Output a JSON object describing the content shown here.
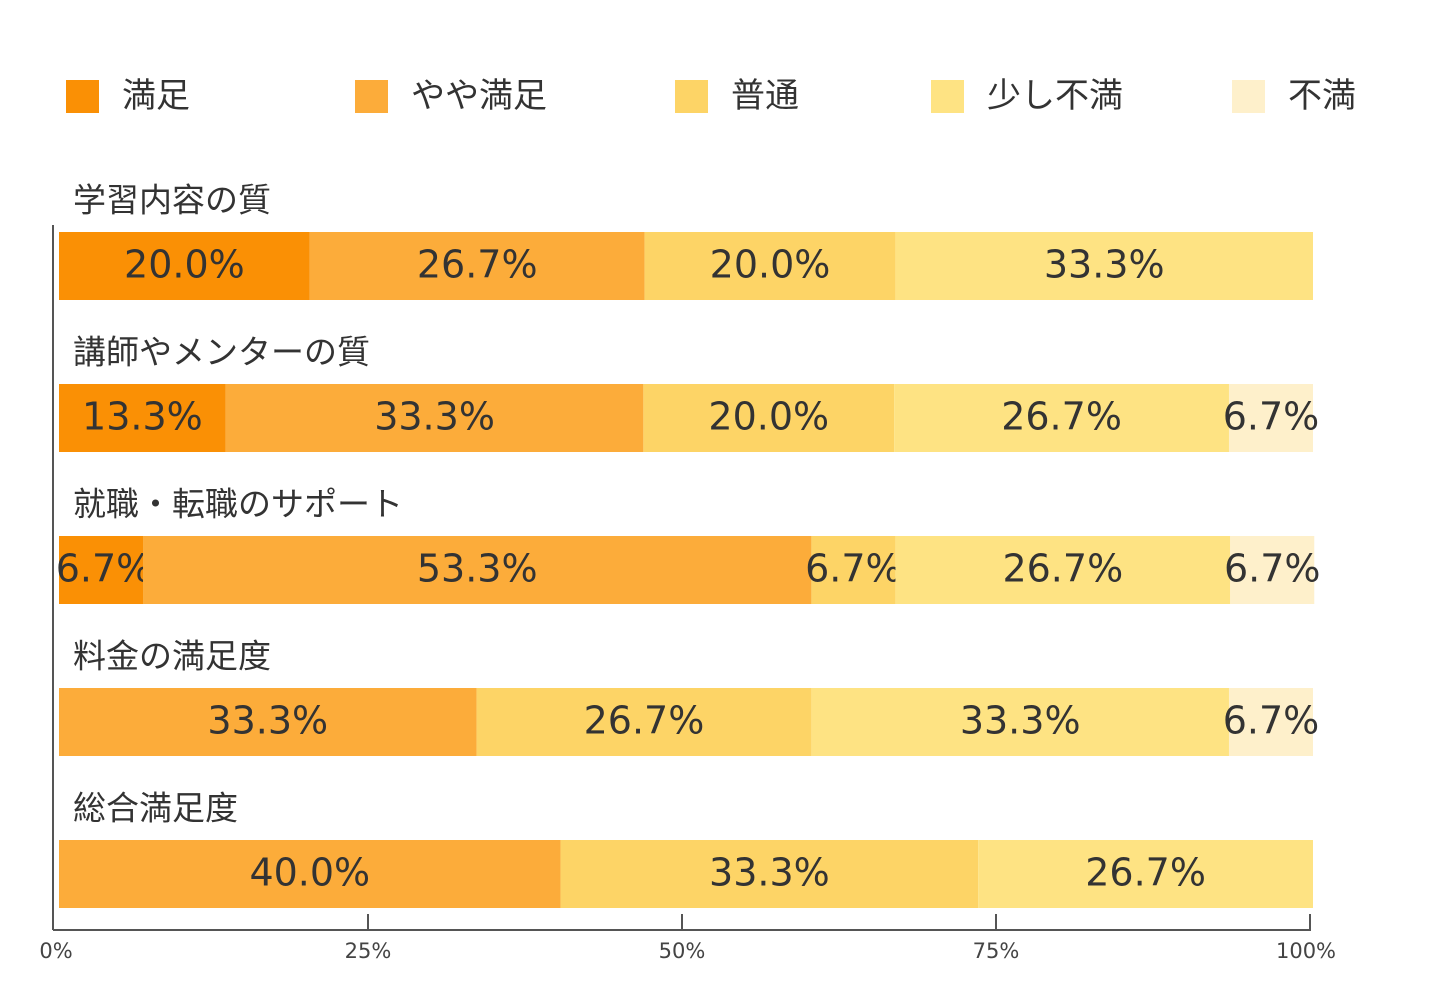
{
  "chart_data": {
    "type": "bar",
    "orientation": "horizontal",
    "stacked": true,
    "legend_position": "top",
    "grid": false,
    "xlim": [
      0,
      100
    ],
    "x_ticks": [
      "0%",
      "25%",
      "50%",
      "75%",
      "100%"
    ],
    "categories": [
      "学習内容の質",
      "講師やメンターの質",
      "就職・転職のサポート",
      "料金の満足度",
      "総合満足度"
    ],
    "series": [
      {
        "name": "満足",
        "color": "#fa9005",
        "values": [
          20.0,
          13.3,
          6.7,
          0,
          0
        ],
        "labels": [
          "20.0%",
          "13.3%",
          "6.7%",
          "",
          ""
        ]
      },
      {
        "name": "やや満足",
        "color": "#fcac3a",
        "values": [
          26.7,
          33.3,
          53.3,
          33.3,
          40.0
        ],
        "labels": [
          "26.7%",
          "33.3%",
          "53.3%",
          "33.3%",
          "40.0%"
        ]
      },
      {
        "name": "普通",
        "color": "#fdd466",
        "values": [
          20.0,
          20.0,
          6.7,
          26.7,
          33.3
        ],
        "labels": [
          "20.0%",
          "20.0%",
          "6.7%",
          "26.7%",
          "33.3%"
        ]
      },
      {
        "name": "少し不満",
        "color": "#fee383",
        "values": [
          33.3,
          26.7,
          26.7,
          33.3,
          26.7
        ],
        "labels": [
          "33.3%",
          "26.7%",
          "26.7%",
          "33.3%",
          "26.7%"
        ]
      },
      {
        "name": "不満",
        "color": "#fef0cb",
        "values": [
          0,
          6.7,
          6.7,
          6.7,
          0
        ],
        "labels": [
          "",
          "6.7%",
          "6.7%",
          "6.7%",
          ""
        ]
      }
    ]
  }
}
